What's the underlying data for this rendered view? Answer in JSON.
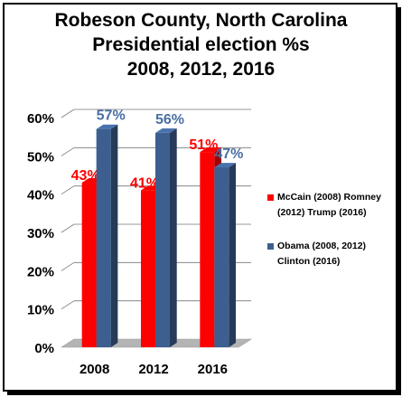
{
  "chart_data": {
    "type": "bar",
    "title_lines": [
      "Robeson County, North Carolina",
      "Presidential election %s",
      "2008, 2012, 2016"
    ],
    "categories": [
      "2008",
      "2012",
      "2016"
    ],
    "series": [
      {
        "name": "McCain (2008) Romney (2012)  Trump (2016)",
        "values": [
          43,
          41,
          51
        ],
        "color": "#ff0000",
        "labels": [
          "43%",
          "41%",
          "51%"
        ],
        "label_color": "#ff0000"
      },
      {
        "name": "Obama (2008, 2012) Clinton (2016)",
        "values": [
          57,
          56,
          47
        ],
        "color": "#3d5f90",
        "labels": [
          "57%",
          "56%",
          "47%"
        ],
        "label_color": "#4a6fa5"
      }
    ],
    "y_ticks": [
      "0%",
      "10%",
      "20%",
      "30%",
      "40%",
      "50%",
      "60%"
    ],
    "ylim": [
      0,
      60
    ],
    "grid": true,
    "legend_position": "right"
  }
}
